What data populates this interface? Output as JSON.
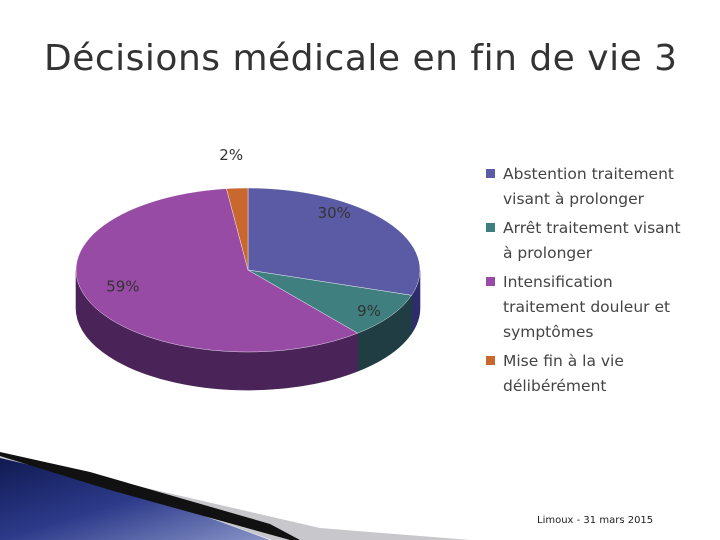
{
  "slide": {
    "title": "Décisions médicale en fin de vie 3",
    "footer": "Limoux - 31 mars 2015"
  },
  "chart_data": {
    "type": "pie",
    "style": "3d",
    "title": "",
    "series": [
      {
        "name": "Abstention traitement visant à prolonger",
        "value": 30,
        "label": "30%",
        "color": "#5b5ba5",
        "side": "#2e2d6b"
      },
      {
        "name": "Arrêt traitement visant à prolonger",
        "value": 9,
        "label": "9%",
        "color": "#3f7f80",
        "side": "#1f3d43"
      },
      {
        "name": "Intensification traitement douleur et symptômes",
        "value": 59,
        "label": "59%",
        "color": "#984ba5",
        "side": "#4a2458"
      },
      {
        "name": "Mise fin à la vie délibérément",
        "value": 2,
        "label": "2%",
        "color": "#c8682e",
        "side": "#6e3412"
      }
    ],
    "legend_position": "right"
  }
}
